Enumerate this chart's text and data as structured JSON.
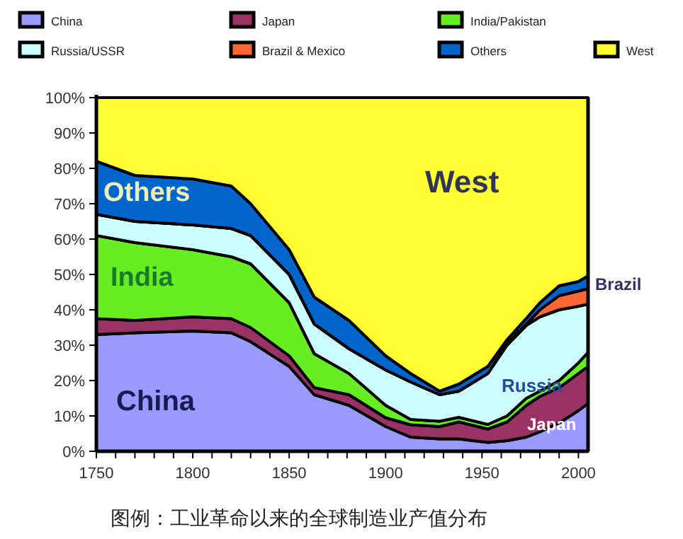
{
  "chart_data": {
    "type": "area",
    "stacked": true,
    "legend": "top",
    "x": [
      1750,
      1770,
      1800,
      1820,
      1830,
      1850,
      1863,
      1881,
      1900,
      1913,
      1928,
      1938,
      1953,
      1963,
      1973,
      1980,
      1990,
      2000,
      2005
    ],
    "series": [
      {
        "name": "China",
        "color": "#9999ff",
        "values": [
          33,
          33.5,
          34,
          33.5,
          31,
          24,
          16,
          13,
          7,
          4,
          3.5,
          3.5,
          2.5,
          3,
          4,
          5.5,
          8,
          11.5,
          13.5
        ]
      },
      {
        "name": "Japan",
        "color": "#993366",
        "values": [
          4.5,
          3.5,
          4,
          4,
          4,
          3,
          2,
          3,
          2.5,
          3.5,
          3.5,
          4.8,
          3.8,
          5.3,
          9,
          10,
          10,
          10.5,
          10.5
        ]
      },
      {
        "name": "India/Pakistan",
        "color": "#66ee22",
        "values": [
          23.5,
          22,
          19,
          17.5,
          18,
          15,
          9.6,
          6,
          3.5,
          1.5,
          1.5,
          1.3,
          1.3,
          1.7,
          2,
          1.5,
          2,
          3,
          4
        ]
      },
      {
        "name": "Russia/USSR",
        "color": "#ccffff",
        "values": [
          6,
          6,
          7,
          8,
          8,
          8,
          8.4,
          7,
          10,
          10.6,
          7.5,
          7.4,
          14.4,
          20,
          20.6,
          21,
          20,
          16,
          13.6
        ]
      },
      {
        "name": "Brazil & Mexico",
        "color": "#ff6633",
        "values": [
          0,
          0,
          0,
          0,
          0,
          0,
          0,
          0,
          0,
          0,
          0,
          0,
          0,
          0.5,
          0.4,
          2,
          4,
          4.3,
          4.4
        ]
      },
      {
        "name": "Others",
        "color": "#0066cc",
        "values": [
          15,
          13,
          13,
          12,
          9,
          7,
          7.6,
          8,
          4,
          2.4,
          1,
          2,
          2,
          1.1,
          1.6,
          2,
          2.8,
          2.7,
          3.6
        ]
      },
      {
        "name": "West",
        "color": "#ffff33",
        "values": [
          18,
          22,
          23,
          25,
          30,
          43,
          56.4,
          63,
          73,
          78,
          83,
          81,
          76,
          68.4,
          62.4,
          58,
          53.2,
          52,
          50.4
        ]
      }
    ],
    "xlim": [
      1750,
      2005
    ],
    "ylim": [
      0,
      100
    ],
    "xticks": [
      1750,
      {
        "value": 1760,
        "label": null
      },
      {
        "value": 1770,
        "label": null
      },
      {
        "value": 1780,
        "label": null
      },
      {
        "value": 1790,
        "label": null
      },
      1800,
      {
        "value": 1810,
        "label": null
      },
      {
        "value": 1820,
        "label": null
      },
      {
        "value": 1830,
        "label": null
      },
      {
        "value": 1840,
        "label": null
      },
      1850,
      {
        "value": 1860,
        "label": null
      },
      {
        "value": 1870,
        "label": null
      },
      {
        "value": 1880,
        "label": null
      },
      {
        "value": 1890,
        "label": null
      },
      1900,
      {
        "value": 1910,
        "label": null
      },
      {
        "value": 1920,
        "label": null
      },
      {
        "value": 1930,
        "label": null
      },
      {
        "value": 1940,
        "label": null
      },
      1950,
      {
        "value": 1960,
        "label": null
      },
      {
        "value": 1970,
        "label": null
      },
      {
        "value": 1980,
        "label": null
      },
      {
        "value": 1990,
        "label": null
      },
      2000
    ],
    "yticks": [
      {
        "value": 0,
        "label": "0%"
      },
      {
        "value": 10,
        "label": "10%"
      },
      {
        "value": 20,
        "label": "20%"
      },
      {
        "value": 30,
        "label": "30%"
      },
      {
        "value": 40,
        "label": "40%"
      },
      {
        "value": 50,
        "label": "50%"
      },
      {
        "value": 60,
        "label": "60%"
      },
      {
        "value": 70,
        "label": "70%"
      },
      {
        "value": 80,
        "label": "80%"
      },
      {
        "value": 90,
        "label": "90%"
      },
      {
        "value": 100,
        "label": "100%"
      }
    ],
    "annotations": [
      "Others",
      "India",
      "China",
      "West",
      "Russia",
      "Japan",
      "Brazil",
      "图例：工业革命以来的全球制造业产值分布"
    ]
  }
}
